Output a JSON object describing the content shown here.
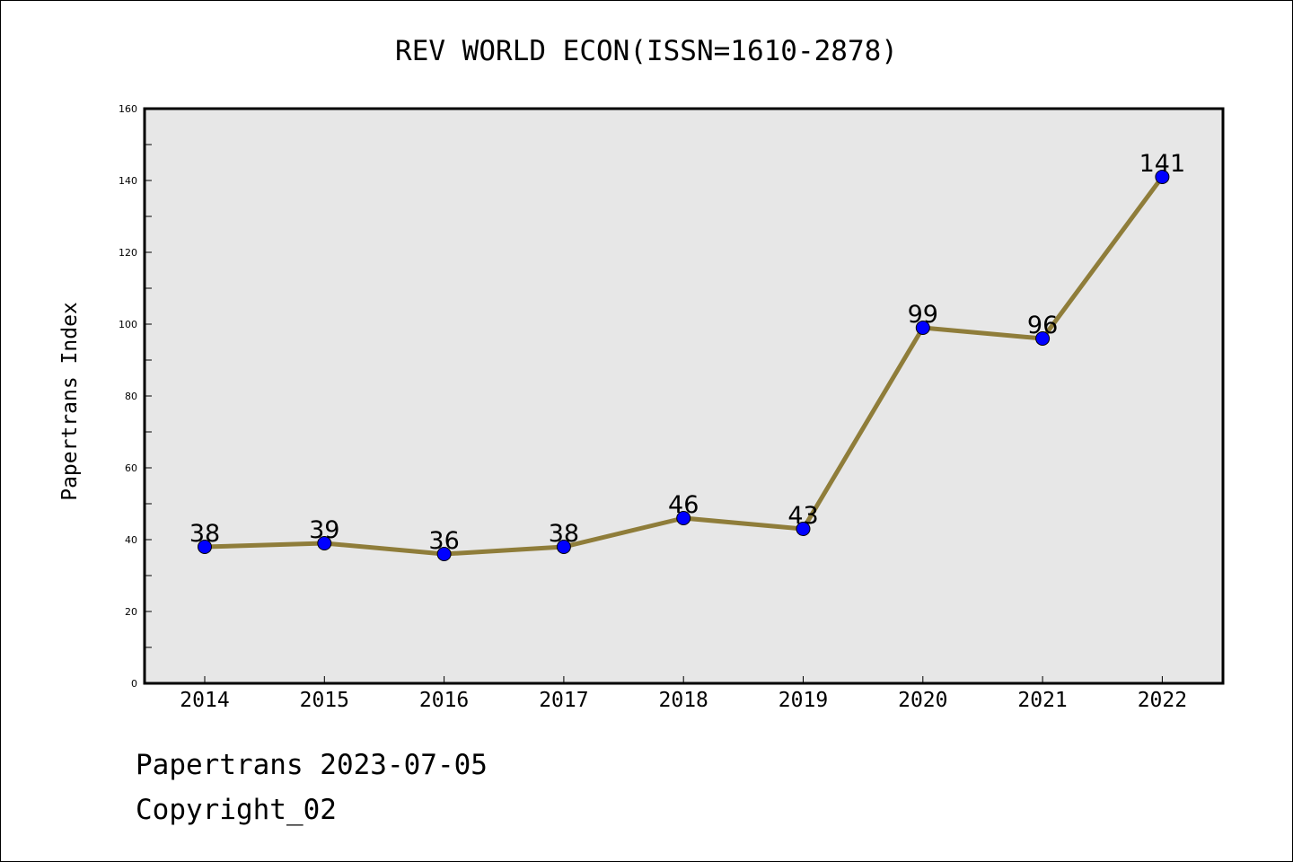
{
  "chart_data": {
    "type": "line",
    "title": "REV WORLD ECON(ISSN=1610-2878)",
    "xlabel": "",
    "ylabel": "Papertrans Index",
    "categories": [
      "2014",
      "2015",
      "2016",
      "2017",
      "2018",
      "2019",
      "2020",
      "2021",
      "2022"
    ],
    "series": [
      {
        "values": [
          38,
          39,
          36,
          38,
          46,
          43,
          99,
          96,
          141
        ]
      }
    ],
    "data_labels": [
      "38",
      "39",
      "36",
      "38",
      "46",
      "43",
      "99",
      "96",
      "141"
    ],
    "ylim": [
      0,
      160
    ],
    "yticks": [
      0,
      20,
      40,
      60,
      80,
      100,
      120,
      140,
      160
    ],
    "grid": false,
    "colors": {
      "line": "#8f7d3a",
      "marker": "#0000ff",
      "plot_background": "#e7e7e7"
    }
  },
  "footer": {
    "line1": "Papertrans 2023-07-05",
    "line2": "Copyright_02"
  }
}
